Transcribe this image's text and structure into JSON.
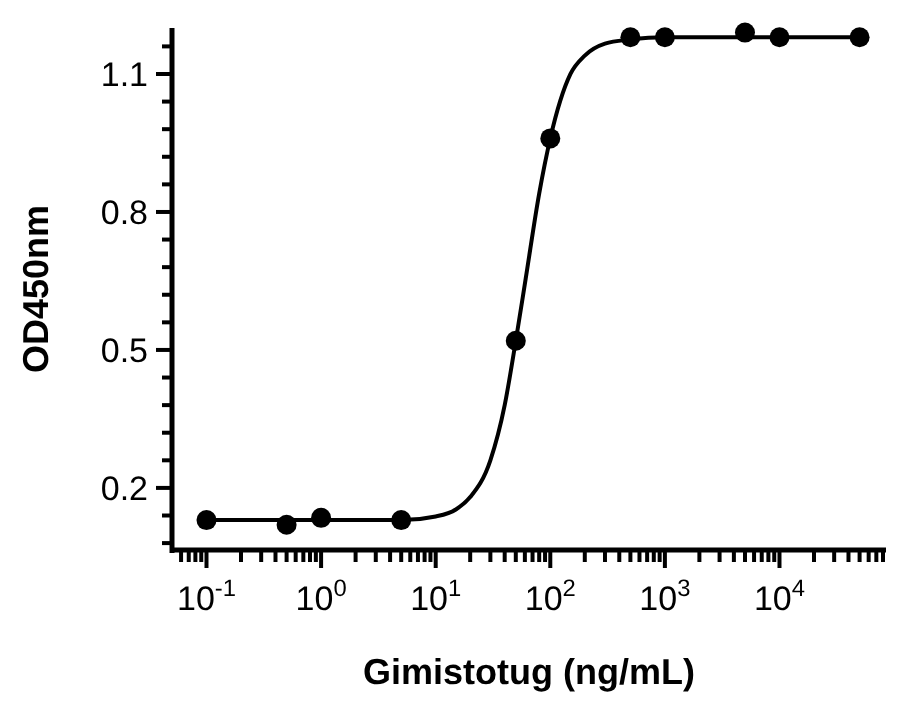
{
  "chart_data": {
    "type": "scatter",
    "xlabel": "Gimistotug (ng/mL)",
    "ylabel": "OD450nm",
    "log": "x",
    "grid": false,
    "marker": "circle",
    "xlim": [
      0.05,
      85000
    ],
    "ylim": [
      0.065,
      1.2
    ],
    "xticks": [
      {
        "value": 0.06,
        "label": null
      },
      {
        "value": 0.07,
        "label": null
      },
      {
        "value": 0.08,
        "label": null
      },
      {
        "value": 0.09,
        "label": null
      },
      {
        "value": 0.1,
        "label": "10$^{-1}$"
      },
      {
        "value": 0.2,
        "label": null
      },
      {
        "value": 0.3,
        "label": null
      },
      {
        "value": 0.4,
        "label": null
      },
      {
        "value": 0.5,
        "label": null
      },
      {
        "value": 0.6,
        "label": null
      },
      {
        "value": 0.7,
        "label": null
      },
      {
        "value": 0.8,
        "label": null
      },
      {
        "value": 0.9,
        "label": null
      },
      {
        "value": 1,
        "label": "10$^{0}$"
      },
      {
        "value": 2,
        "label": null
      },
      {
        "value": 3,
        "label": null
      },
      {
        "value": 4,
        "label": null
      },
      {
        "value": 5,
        "label": null
      },
      {
        "value": 6,
        "label": null
      },
      {
        "value": 7,
        "label": null
      },
      {
        "value": 8,
        "label": null
      },
      {
        "value": 9,
        "label": null
      },
      {
        "value": 10,
        "label": "10$^{1}$"
      },
      {
        "value": 20,
        "label": null
      },
      {
        "value": 30,
        "label": null
      },
      {
        "value": 40,
        "label": null
      },
      {
        "value": 50,
        "label": null
      },
      {
        "value": 60,
        "label": null
      },
      {
        "value": 70,
        "label": null
      },
      {
        "value": 80,
        "label": null
      },
      {
        "value": 90,
        "label": null
      },
      {
        "value": 100,
        "label": "10$^{2}$"
      },
      {
        "value": 200,
        "label": null
      },
      {
        "value": 300,
        "label": null
      },
      {
        "value": 400,
        "label": null
      },
      {
        "value": 500,
        "label": null
      },
      {
        "value": 600,
        "label": null
      },
      {
        "value": 700,
        "label": null
      },
      {
        "value": 800,
        "label": null
      },
      {
        "value": 900,
        "label": null
      },
      {
        "value": 1000,
        "label": "10$^{3}$"
      },
      {
        "value": 2000,
        "label": null
      },
      {
        "value": 3000,
        "label": null
      },
      {
        "value": 4000,
        "label": null
      },
      {
        "value": 5000,
        "label": null
      },
      {
        "value": 6000,
        "label": null
      },
      {
        "value": 7000,
        "label": null
      },
      {
        "value": 8000,
        "label": null
      },
      {
        "value": 9000,
        "label": null
      },
      {
        "value": 10000,
        "label": "10$^{4}$"
      },
      {
        "value": 20000,
        "label": null
      },
      {
        "value": 30000,
        "label": null
      },
      {
        "value": 40000,
        "label": null
      },
      {
        "value": 50000,
        "label": null
      },
      {
        "value": 60000,
        "label": null
      },
      {
        "value": 70000,
        "label": null
      },
      {
        "value": 80000,
        "label": null
      }
    ],
    "yticks": [
      {
        "value": 0.08,
        "label": null
      },
      {
        "value": 0.14,
        "label": null
      },
      0.2,
      {
        "value": 0.26,
        "label": null
      },
      {
        "value": 0.32,
        "label": null
      },
      {
        "value": 0.38,
        "label": null
      },
      {
        "value": 0.44,
        "label": null
      },
      0.5,
      {
        "value": 0.56,
        "label": null
      },
      {
        "value": 0.62,
        "label": null
      },
      {
        "value": 0.68,
        "label": null
      },
      {
        "value": 0.74,
        "label": null
      },
      0.8,
      {
        "value": 0.86,
        "label": null
      },
      {
        "value": 0.92,
        "label": null
      },
      {
        "value": 0.98,
        "label": null
      },
      {
        "value": 1.04,
        "label": null
      },
      1.1,
      {
        "value": 1.16,
        "label": null
      }
    ],
    "series": [
      {
        "color": "#000000",
        "x": [
          0.1,
          0.5,
          1,
          5,
          50,
          100,
          500,
          1000,
          5000,
          10000,
          50000
        ],
        "values": [
          0.13,
          0.12,
          0.135,
          0.13,
          0.52,
          0.96,
          1.18,
          1.18,
          1.19,
          1.18,
          1.18
        ]
      },
      {
        "type": "line",
        "color": "#000000",
        "marker": "none",
        "x": [
          0.1,
          1,
          5,
          10,
          15,
          20,
          30,
          40,
          50,
          61,
          80,
          100,
          150,
          200,
          300,
          500,
          1000,
          50000
        ],
        "values": [
          0.13,
          0.13,
          0.13,
          0.138,
          0.153,
          0.18,
          0.26,
          0.38,
          0.52,
          0.655,
          0.84,
          0.96,
          1.1,
          1.14,
          1.166,
          1.175,
          1.18,
          1.18
        ]
      }
    ]
  }
}
